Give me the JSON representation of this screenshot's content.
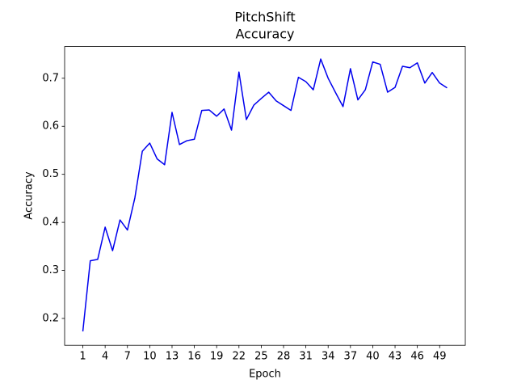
{
  "chart_data": {
    "type": "line",
    "title": "PitchShift",
    "subtitle": "Accuracy",
    "x_label": "Epoch",
    "y_label": "Accuracy",
    "x": [
      1,
      2,
      3,
      4,
      5,
      6,
      7,
      8,
      9,
      10,
      11,
      12,
      13,
      14,
      15,
      16,
      17,
      18,
      19,
      20,
      21,
      22,
      23,
      24,
      25,
      26,
      27,
      28,
      29,
      30,
      31,
      32,
      33,
      34,
      35,
      36,
      37,
      38,
      39,
      40,
      41,
      42,
      43,
      44,
      45,
      46,
      47,
      48,
      49,
      50
    ],
    "series": [
      {
        "name": "Accuracy",
        "color": "#0000ee",
        "values": [
          0.173,
          0.32,
          0.323,
          0.39,
          0.341,
          0.405,
          0.384,
          0.451,
          0.548,
          0.565,
          0.532,
          0.52,
          0.629,
          0.562,
          0.57,
          0.573,
          0.633,
          0.634,
          0.621,
          0.636,
          0.592,
          0.713,
          0.614,
          0.644,
          0.658,
          0.671,
          0.653,
          0.643,
          0.633,
          0.702,
          0.693,
          0.676,
          0.74,
          0.7,
          0.67,
          0.641,
          0.72,
          0.655,
          0.676,
          0.734,
          0.729,
          0.671,
          0.681,
          0.725,
          0.722,
          0.732,
          0.69,
          0.712,
          0.69,
          0.68
        ]
      }
    ],
    "xlim": [
      -1.45,
      52.45
    ],
    "xticks": [
      1,
      4,
      7,
      10,
      13,
      16,
      19,
      22,
      25,
      28,
      31,
      34,
      37,
      40,
      43,
      46,
      49
    ],
    "ylim": [
      0.144,
      0.766
    ],
    "yticks": [
      0.2,
      0.3,
      0.4,
      0.5,
      0.6,
      0.7
    ],
    "grid": false
  }
}
